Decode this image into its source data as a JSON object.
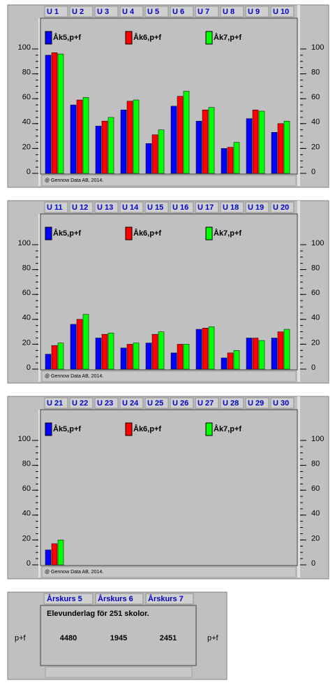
{
  "chart_data": [
    {
      "type": "bar",
      "categories": [
        "U 1",
        "U 2",
        "U 3",
        "U 4",
        "U 5",
        "U 6",
        "U 7",
        "U 8",
        "U 9",
        "U 10"
      ],
      "series": [
        {
          "name": "Åk5,p+f",
          "color": "#0000ff",
          "values": [
            95,
            55,
            38,
            51,
            24,
            54,
            42,
            20,
            44,
            33
          ]
        },
        {
          "name": "Åk6,p+f",
          "color": "#ff0000",
          "values": [
            97,
            59,
            42,
            58,
            31,
            62,
            51,
            21,
            51,
            40
          ]
        },
        {
          "name": "Åk7,p+f",
          "color": "#00ff00",
          "values": [
            96,
            61,
            45,
            59,
            35,
            66,
            53,
            25,
            50,
            42
          ]
        }
      ],
      "ylim": [
        0,
        100
      ],
      "yticks": [
        0,
        20,
        40,
        60,
        80,
        100
      ],
      "footer": "@ Gennow Data AB, 2014."
    },
    {
      "type": "bar",
      "categories": [
        "U 11",
        "U 12",
        "U 13",
        "U 14",
        "U 15",
        "U 16",
        "U 17",
        "U 18",
        "U 19",
        "U 20"
      ],
      "series": [
        {
          "name": "Åk5,p+f",
          "color": "#0000ff",
          "values": [
            12,
            36,
            25,
            17,
            21,
            13,
            32,
            9,
            25,
            25
          ]
        },
        {
          "name": "Åk6,p+f",
          "color": "#ff0000",
          "values": [
            19,
            40,
            28,
            20,
            28,
            20,
            33,
            13,
            25,
            30
          ]
        },
        {
          "name": "Åk7,p+f",
          "color": "#00ff00",
          "values": [
            21,
            44,
            29,
            21,
            30,
            20,
            34,
            15,
            23,
            32
          ]
        }
      ],
      "ylim": [
        0,
        100
      ],
      "yticks": [
        0,
        20,
        40,
        60,
        80,
        100
      ],
      "footer": "@ Gennow Data AB, 2014."
    },
    {
      "type": "bar",
      "categories": [
        "U 21",
        "U 22",
        "U 23",
        "U 24",
        "U 25",
        "U 26",
        "U 27",
        "U 28",
        "U 29",
        "U 30"
      ],
      "series": [
        {
          "name": "Åk5,p+f",
          "color": "#0000ff",
          "values": [
            12,
            null,
            null,
            null,
            null,
            null,
            null,
            null,
            null,
            null
          ]
        },
        {
          "name": "Åk6,p+f",
          "color": "#ff0000",
          "values": [
            17,
            null,
            null,
            null,
            null,
            null,
            null,
            null,
            null,
            null
          ]
        },
        {
          "name": "Åk7,p+f",
          "color": "#00ff00",
          "values": [
            20,
            null,
            null,
            null,
            null,
            null,
            null,
            null,
            null,
            null
          ]
        }
      ],
      "ylim": [
        0,
        100
      ],
      "yticks": [
        0,
        20,
        40,
        60,
        80,
        100
      ],
      "footer": "@ Gennow Data AB, 2014."
    }
  ],
  "summary": {
    "tabs": [
      "Årskurs 5",
      "Årskurs 6",
      "Årskurs 7"
    ],
    "title": "Elevunderlag för 251 skolor.",
    "values": [
      4480,
      1945,
      2451
    ],
    "left_label": "p+f",
    "right_label": "p+f"
  }
}
